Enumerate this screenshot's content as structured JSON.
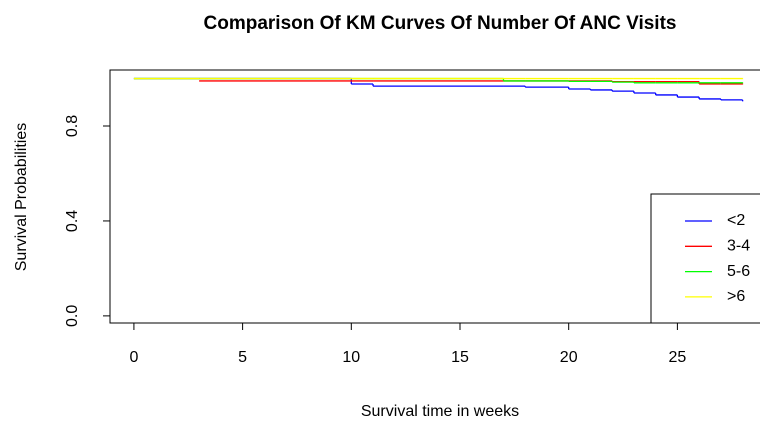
{
  "chart_data": {
    "type": "step",
    "title": "Comparison Of KM Curves Of Number Of ANC Visits",
    "x_label": "Survival time in weeks",
    "y_label": "Survival Probabilities",
    "x": [
      0,
      3,
      10,
      11,
      17,
      18,
      20,
      21,
      22,
      23,
      24,
      25,
      26,
      27,
      28
    ],
    "series": [
      {
        "name": "<2",
        "color": "#0000ff",
        "values": [
          1,
          1,
          0.977,
          0.968,
          0.968,
          0.964,
          0.956,
          0.952,
          0.947,
          0.939,
          0.931,
          0.922,
          0.914,
          0.91,
          0.905
        ]
      },
      {
        "name": "3-4",
        "color": "#ff0000",
        "values": [
          null,
          0.99,
          0.99,
          0.99,
          0.99,
          0.99,
          0.99,
          0.99,
          0.987,
          0.987,
          0.987,
          0.987,
          0.977,
          0.977,
          0.977
        ]
      },
      {
        "name": "5-6",
        "color": "#00ff00",
        "values": [
          1,
          1,
          1,
          1,
          0.99,
          0.99,
          0.988,
          0.988,
          0.985,
          0.982,
          0.982,
          0.982,
          0.982,
          0.982,
          0.982
        ]
      },
      {
        "name": ">6",
        "color": "#ffff00",
        "values": [
          1,
          1,
          1,
          1,
          1,
          1,
          1,
          1,
          1,
          1,
          1,
          1,
          1,
          1,
          1
        ]
      }
    ],
    "xlim": [
      -1.1,
      28.8
    ],
    "ylim": [
      -0.03,
      1.036
    ],
    "xticks": [
      0,
      5,
      10,
      15,
      20,
      25
    ],
    "yticks": [
      {
        "value": 0,
        "label": "0.0"
      },
      0.4,
      0.8
    ],
    "legend": "right"
  }
}
